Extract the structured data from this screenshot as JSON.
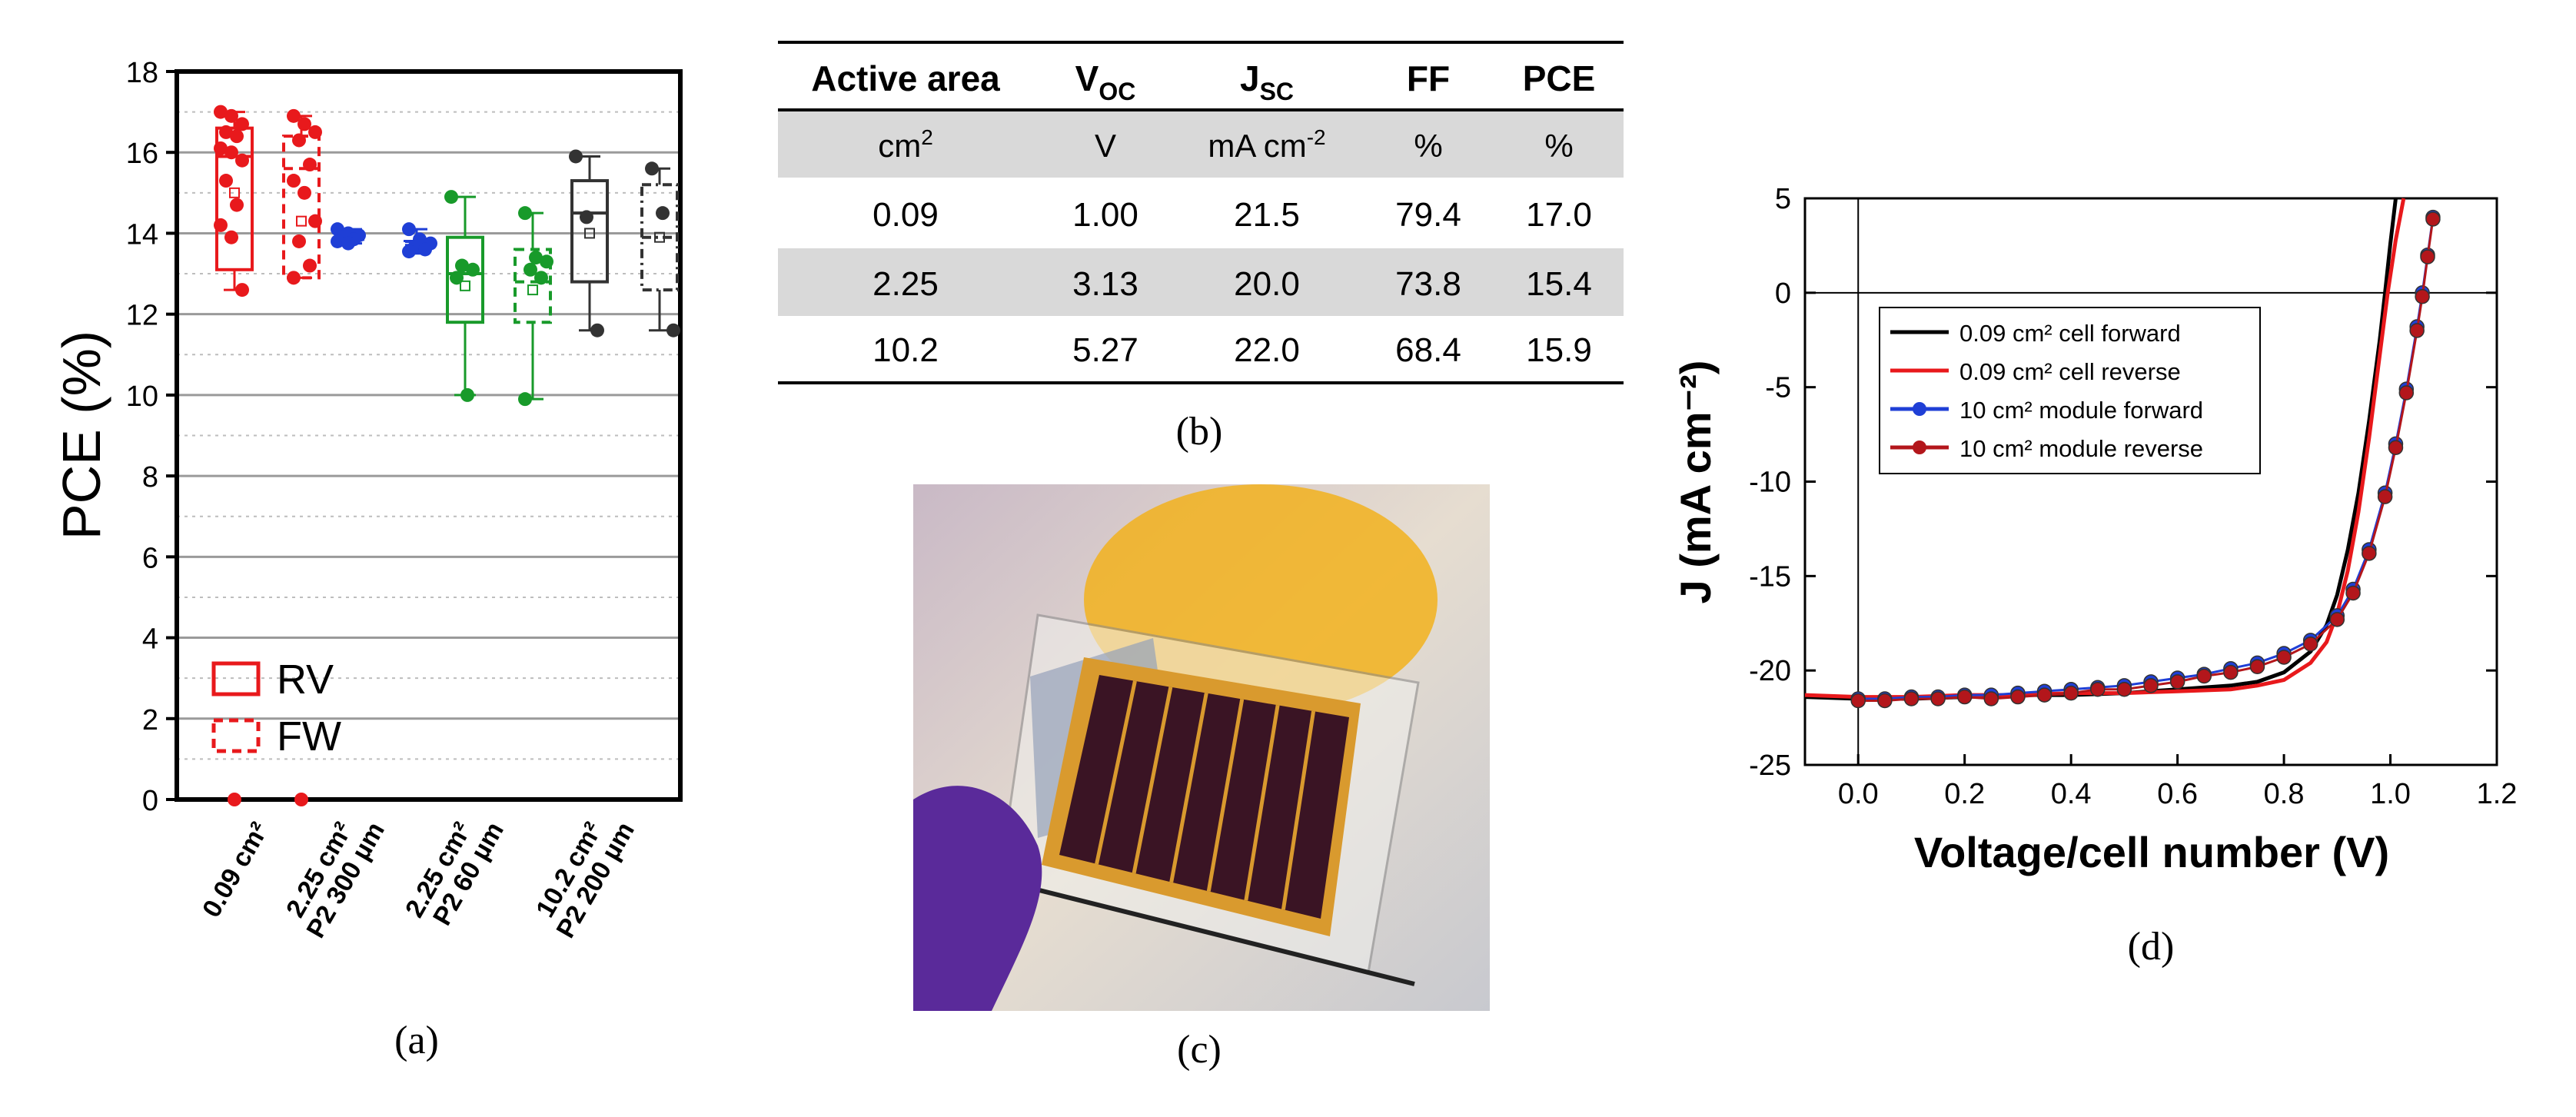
{
  "labels": {
    "a": "(a)",
    "b": "(b)",
    "c": "(c)",
    "d": "(d)"
  },
  "chart_data": [
    {
      "type": "box",
      "panel": "(a)",
      "ylabel": "PCE (%)",
      "ylim": [
        0,
        18
      ],
      "yticks": [
        "0",
        "2",
        "4",
        "6",
        "8",
        "10",
        "12",
        "14",
        "16",
        "18"
      ],
      "grid": true,
      "legend": {
        "position": "bottom-left",
        "entries": [
          "RV",
          "FW"
        ]
      },
      "categories": [
        {
          "lines": [
            "0.09 cm²"
          ]
        },
        {
          "lines": [
            "2.25 cm²",
            "P2 300 µm"
          ]
        },
        {
          "lines": [
            "2.25 cm²",
            "P2 60 µm"
          ]
        },
        {
          "lines": [
            "10.2 cm²",
            "P2 200 µm"
          ]
        }
      ],
      "groups": [
        {
          "category": 0,
          "mode": "RV",
          "color": "#e8191c",
          "q1": 13.1,
          "median": 15.9,
          "q3": 16.6,
          "whisker_low": 12.6,
          "whisker_high": 17.0,
          "mean": 15.0,
          "points": [
            17.0,
            16.9,
            16.7,
            16.5,
            16.4,
            16.1,
            16.0,
            15.8,
            15.3,
            14.7,
            14.2,
            13.9,
            12.6
          ]
        },
        {
          "category": 1,
          "mode": "FW",
          "color": "#e8191c",
          "q1": 12.9,
          "median": 15.6,
          "q3": 16.4,
          "whisker_low": 12.9,
          "whisker_high": 16.9,
          "mean": 14.3,
          "points": [
            16.9,
            16.7,
            16.5,
            16.3,
            15.7,
            15.3,
            15.0,
            14.3,
            13.8,
            13.2,
            12.9
          ]
        },
        {
          "category": 1,
          "mode": "RV",
          "color": "#1f3fd6",
          "q1": 13.85,
          "median": 13.95,
          "q3": 14.0,
          "whisker_low": 13.75,
          "whisker_high": 14.1,
          "mean": 13.9,
          "points": [
            14.1,
            14.0,
            13.95,
            13.9,
            13.85,
            13.8,
            13.75
          ]
        },
        {
          "category": 1,
          "mode": "FW",
          "color": "#1f3fd6",
          "q1": 13.6,
          "median": 13.7,
          "q3": 13.8,
          "whisker_low": 13.5,
          "whisker_high": 14.1,
          "mean": 13.7,
          "points": [
            14.1,
            13.85,
            13.75,
            13.65,
            13.6,
            13.55
          ]
        },
        {
          "category": 2,
          "mode": "RV",
          "color": "#189a2a",
          "q1": 11.8,
          "median": 13.0,
          "q3": 13.9,
          "whisker_low": 10.0,
          "whisker_high": 14.9,
          "mean": 12.7,
          "points": [
            14.9,
            13.2,
            13.1,
            12.9,
            10.0
          ]
        },
        {
          "category": 2,
          "mode": "FW",
          "color": "#189a2a",
          "q1": 11.8,
          "median": 12.8,
          "q3": 13.6,
          "whisker_low": 9.9,
          "whisker_high": 14.5,
          "mean": 12.6,
          "points": [
            14.5,
            13.4,
            13.3,
            13.1,
            12.9,
            9.9
          ]
        },
        {
          "category": 3,
          "mode": "RV",
          "color": "#333333",
          "q1": 12.8,
          "median": 14.5,
          "q3": 15.3,
          "whisker_low": 11.6,
          "whisker_high": 15.9,
          "mean": 14.0,
          "points": [
            15.9,
            14.4,
            11.6
          ]
        },
        {
          "category": 3,
          "mode": "FW",
          "color": "#333333",
          "q1": 12.6,
          "median": 13.9,
          "q3": 15.2,
          "whisker_low": 11.6,
          "whisker_high": 15.6,
          "mean": 13.9,
          "points": [
            15.6,
            14.5,
            11.6
          ]
        }
      ],
      "zero_markers": [
        {
          "x": 0.3,
          "y": 0
        },
        {
          "x": 0.62,
          "y": 0
        }
      ]
    },
    {
      "type": "table",
      "panel": "(b)",
      "header_row": [
        {
          "main": "Active area",
          "sub": ""
        },
        {
          "main": "V",
          "sub": "OC"
        },
        {
          "main": "J",
          "sub": "SC"
        },
        {
          "main": "FF",
          "sub": ""
        },
        {
          "main": "PCE",
          "sub": ""
        }
      ],
      "units_row": [
        {
          "main": "cm",
          "sup": "2"
        },
        {
          "main": "V",
          "sup": ""
        },
        {
          "main": "mA cm",
          "sup": "-2"
        },
        {
          "main": "%",
          "sup": ""
        },
        {
          "main": "%",
          "sup": ""
        }
      ],
      "rows": [
        [
          "0.09",
          "1.00",
          "21.5",
          "79.4",
          "17.0"
        ],
        [
          "2.25",
          "3.13",
          "20.0",
          "73.8",
          "15.4"
        ],
        [
          "10.2",
          "5.27",
          "22.0",
          "68.4",
          "15.9"
        ]
      ]
    },
    {
      "type": "line",
      "panel": "(d)",
      "xlabel": "Voltage/cell number (V)",
      "ylabel": "J (mA cm⁻²)",
      "xlim": [
        -0.1,
        1.2
      ],
      "ylim": [
        -25,
        5
      ],
      "xticks": [
        "0.0",
        "0.2",
        "0.4",
        "0.6",
        "0.8",
        "1.0",
        "1.2"
      ],
      "yticks": [
        "5",
        "0",
        "-5",
        "-10",
        "-15",
        "-20",
        "-25"
      ],
      "legend": {
        "position": "top-left",
        "entries": [
          "0.09 cm² cell forward",
          "0.09 cm² cell reverse",
          "10 cm² module forward",
          "10 cm² module reverse"
        ]
      },
      "series": [
        {
          "name": "0.09 cm² cell forward",
          "color": "#000000",
          "marker": false,
          "x": [
            -0.1,
            0.0,
            0.1,
            0.2,
            0.3,
            0.4,
            0.5,
            0.6,
            0.7,
            0.75,
            0.8,
            0.85,
            0.88,
            0.9,
            0.92,
            0.94,
            0.96,
            0.98,
            0.99,
            1.0,
            1.01
          ],
          "y": [
            -21.4,
            -21.5,
            -21.5,
            -21.4,
            -21.3,
            -21.3,
            -21.2,
            -21.0,
            -20.8,
            -20.6,
            -20.1,
            -19.0,
            -17.6,
            -16.0,
            -13.6,
            -10.6,
            -6.8,
            -2.5,
            0.0,
            2.6,
            5.0
          ]
        },
        {
          "name": "0.09 cm² cell reverse",
          "color": "#e8191c",
          "marker": false,
          "x": [
            -0.1,
            0.0,
            0.1,
            0.2,
            0.3,
            0.4,
            0.5,
            0.6,
            0.7,
            0.75,
            0.8,
            0.85,
            0.88,
            0.9,
            0.92,
            0.94,
            0.96,
            0.98,
            0.995,
            1.01,
            1.025
          ],
          "y": [
            -21.3,
            -21.4,
            -21.4,
            -21.3,
            -21.3,
            -21.2,
            -21.2,
            -21.1,
            -21.0,
            -20.8,
            -20.5,
            -19.6,
            -18.5,
            -17.0,
            -14.7,
            -11.6,
            -7.7,
            -3.3,
            0.0,
            2.8,
            5.0
          ]
        },
        {
          "name": "10 cm² module forward",
          "color": "#1f3fd6",
          "marker": true,
          "x": [
            0.0,
            0.05,
            0.1,
            0.15,
            0.2,
            0.25,
            0.3,
            0.35,
            0.4,
            0.45,
            0.5,
            0.55,
            0.6,
            0.65,
            0.7,
            0.75,
            0.8,
            0.85,
            0.9,
            0.93,
            0.96,
            0.99,
            1.01,
            1.03,
            1.05,
            1.06,
            1.07,
            1.08
          ],
          "y": [
            -21.5,
            -21.5,
            -21.4,
            -21.4,
            -21.3,
            -21.3,
            -21.2,
            -21.1,
            -21.0,
            -20.9,
            -20.8,
            -20.6,
            -20.4,
            -20.2,
            -19.9,
            -19.6,
            -19.1,
            -18.4,
            -17.1,
            -15.7,
            -13.6,
            -10.6,
            -8.0,
            -5.1,
            -1.8,
            0.0,
            2.0,
            4.0
          ]
        },
        {
          "name": "10 cm² module reverse",
          "color": "#b3161b",
          "marker": true,
          "x": [
            0.0,
            0.05,
            0.1,
            0.15,
            0.2,
            0.25,
            0.3,
            0.35,
            0.4,
            0.45,
            0.5,
            0.55,
            0.6,
            0.65,
            0.7,
            0.75,
            0.8,
            0.85,
            0.9,
            0.93,
            0.96,
            0.99,
            1.01,
            1.03,
            1.05,
            1.06,
            1.07,
            1.08
          ],
          "y": [
            -21.6,
            -21.6,
            -21.5,
            -21.5,
            -21.4,
            -21.5,
            -21.4,
            -21.3,
            -21.2,
            -21.0,
            -21.0,
            -20.8,
            -20.6,
            -20.3,
            -20.1,
            -19.8,
            -19.3,
            -18.6,
            -17.3,
            -15.9,
            -13.8,
            -10.8,
            -8.2,
            -5.3,
            -2.0,
            -0.2,
            1.9,
            3.9
          ]
        }
      ]
    }
  ],
  "photo": {
    "description_icon": "perovskite-module-photo-icon",
    "bg_color": "#d8cfc6",
    "module_color": "#3a1424",
    "frame_color": "#d99a2e"
  }
}
